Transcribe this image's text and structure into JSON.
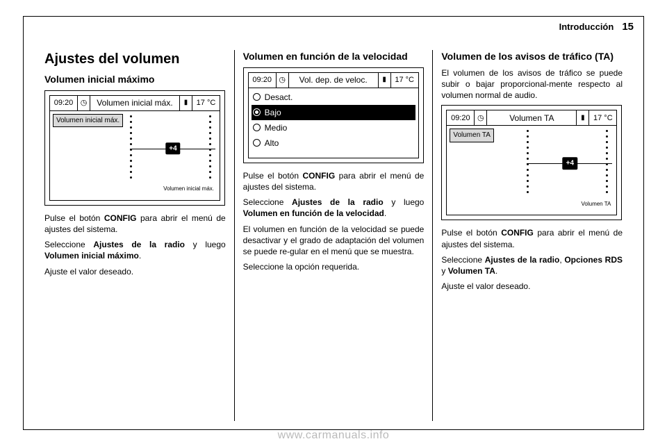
{
  "header": {
    "section": "Introducción",
    "page": "15"
  },
  "col1": {
    "h2": "Ajustes del volumen",
    "h3": "Volumen inicial máximo",
    "lcd": {
      "time": "09:20",
      "title": "Volumen inicial máx.",
      "temp": "17 °C",
      "menu_btn": "Volumen inicial máx.",
      "knob": "+4",
      "caption": "Volumen inicial máx."
    },
    "p1_a": "Pulse el botón ",
    "p1_b": "CONFIG",
    "p1_c": " para abrir el menú de ajustes del sistema.",
    "p2_a": "Seleccione ",
    "p2_b": "Ajustes de la radio",
    "p2_c": " y luego ",
    "p2_d": "Volumen inicial máximo",
    "p2_e": ".",
    "p3": "Ajuste el valor deseado."
  },
  "col2": {
    "h3": "Volumen en función de la velocidad",
    "lcd": {
      "time": "09:20",
      "title": "Vol. dep. de veloc.",
      "temp": "17 °C",
      "options": [
        "Desact.",
        "Bajo",
        "Medio",
        "Alto"
      ],
      "selected_index": 1
    },
    "p1_a": "Pulse el botón ",
    "p1_b": "CONFIG",
    "p1_c": " para abrir el menú de ajustes del sistema.",
    "p2_a": "Seleccione ",
    "p2_b": "Ajustes de la radio",
    "p2_c": " y luego ",
    "p2_d": "Volumen en función de la velocidad",
    "p2_e": ".",
    "p3": "El volumen en función de la velocidad se puede desactivar y el grado de adaptación del volumen se puede re‐gular en el menú que se muestra.",
    "p4": "Seleccione la opción requerida."
  },
  "col3": {
    "h3": "Volumen de los avisos de tráfico (TA)",
    "p0": "El volumen de los avisos de tráfico se puede subir o bajar proporcional‐mente respecto al volumen normal de audio.",
    "lcd": {
      "time": "09:20",
      "title": "Volumen TA",
      "temp": "17 °C",
      "menu_btn": "Volumen TA",
      "knob": "+4",
      "caption": "Volumen TA"
    },
    "p1_a": "Pulse el botón ",
    "p1_b": "CONFIG",
    "p1_c": " para abrir el menú de ajustes del sistema.",
    "p2_a": "Seleccione ",
    "p2_b": "Ajustes de la radio",
    "p2_c": ", ",
    "p2_d": "Opciones RDS",
    "p2_e": " y ",
    "p2_f": "Volumen TA",
    "p2_g": ".",
    "p3": "Ajuste el valor deseado."
  },
  "watermark": "www.carmanuals.info"
}
